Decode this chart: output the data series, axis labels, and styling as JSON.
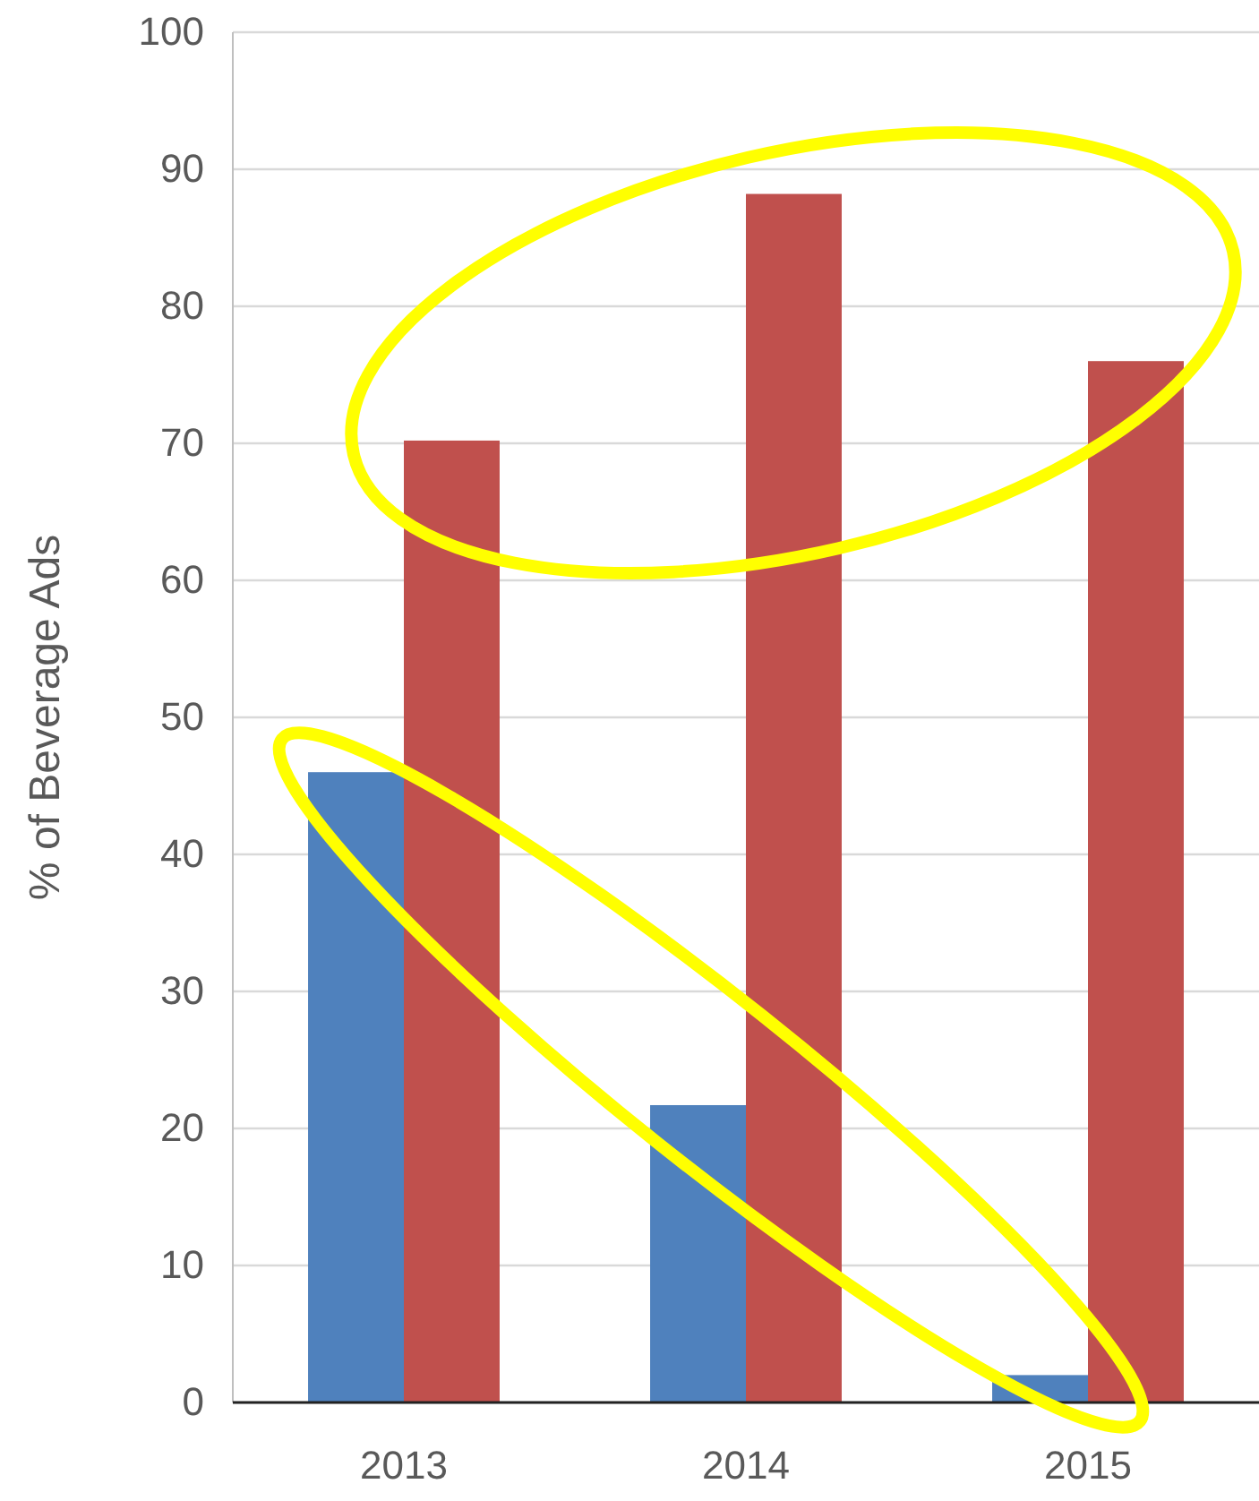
{
  "chart_data": {
    "type": "bar",
    "ylabel": "% of Beverage Ads",
    "categories": [
      "2013",
      "2014",
      "2015"
    ],
    "series": [
      {
        "color": "#4f81bd",
        "values": [
          46,
          21.7,
          2
        ]
      },
      {
        "color": "#c0504d",
        "values": [
          70.2,
          88.2,
          76
        ]
      }
    ],
    "ylim": [
      0,
      100
    ],
    "yticks": [
      0,
      10,
      20,
      30,
      40,
      50,
      60,
      70,
      80,
      90,
      100
    ],
    "grid": "y"
  }
}
